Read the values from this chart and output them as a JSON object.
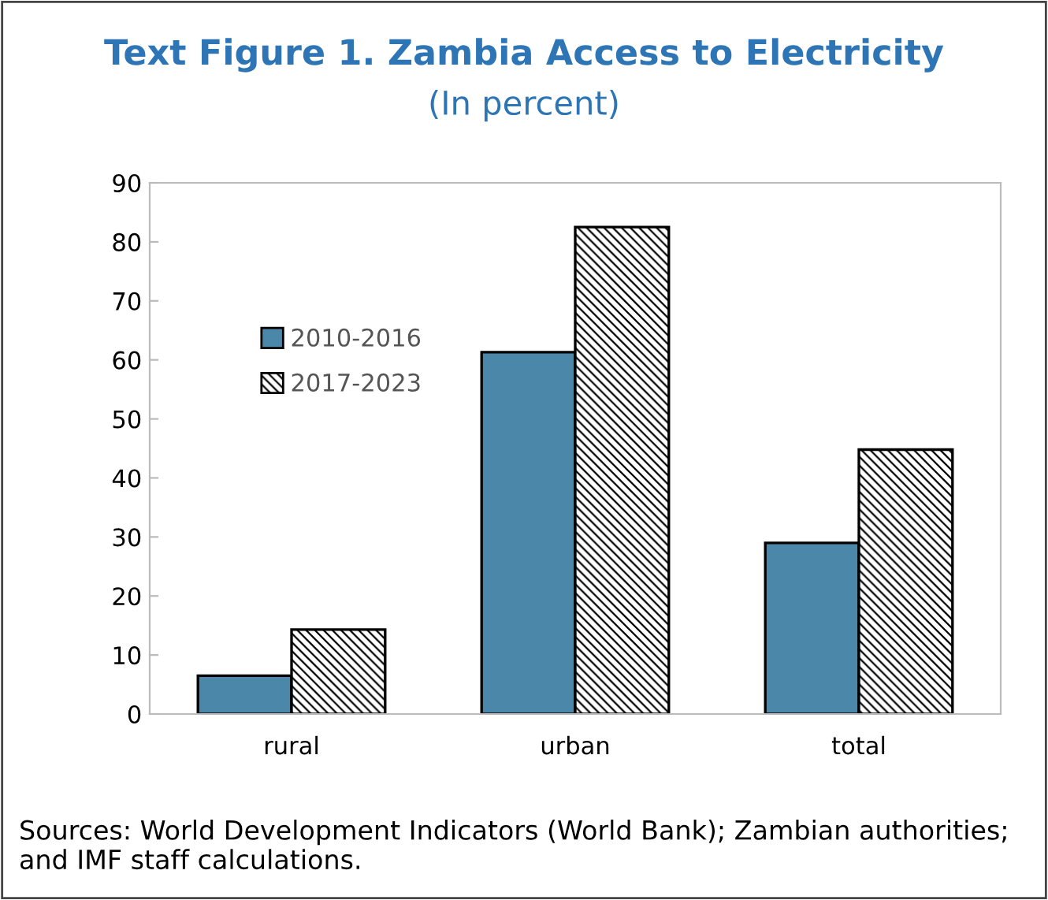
{
  "chart_data": {
    "type": "bar",
    "title": "Text Figure 1. Zambia Access to Electricity",
    "subtitle": "(In percent)",
    "categories": [
      "rural",
      "urban",
      "total"
    ],
    "series": [
      {
        "name": "2010-2016",
        "color": "#4a87a8",
        "values": [
          6.5,
          61.3,
          29.0
        ]
      },
      {
        "name": "2017-2023",
        "color": "#000000",
        "values": [
          14.3,
          82.5,
          44.8
        ]
      }
    ],
    "ylim": [
      0,
      90
    ],
    "yticks": [
      0,
      10,
      20,
      30,
      40,
      50,
      60,
      70,
      80,
      90
    ],
    "grid": false,
    "legend": "top left",
    "annotations": [
      "Sources: World Development Indicators (World Bank); Zambian authorities; and IMF staff calculations."
    ]
  }
}
